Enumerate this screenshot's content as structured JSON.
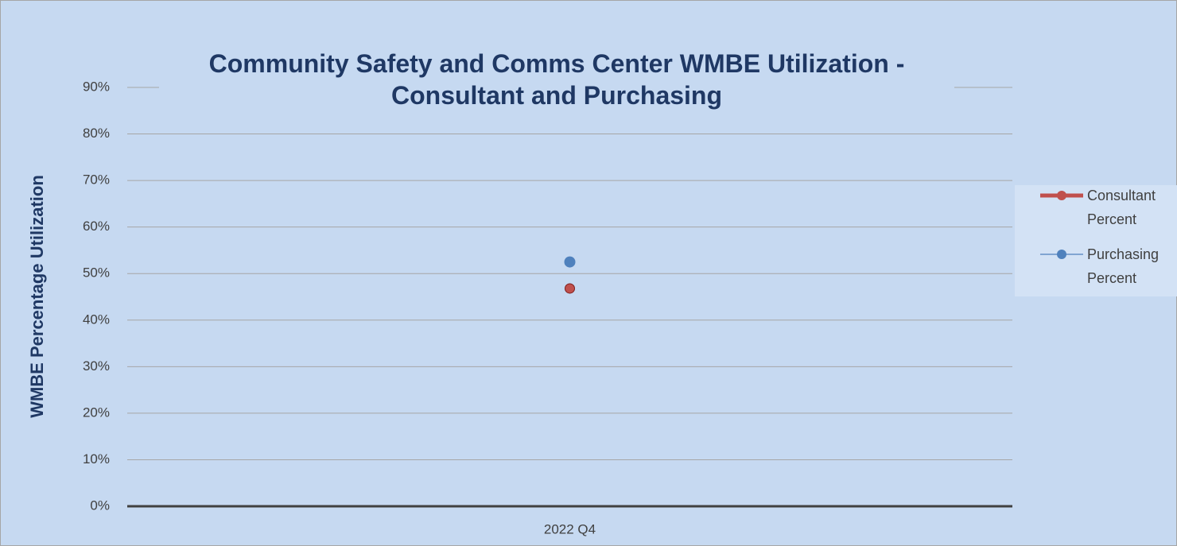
{
  "chart_data": {
    "type": "line",
    "title": "Community Safety and Comms Center WMBE Utilization - Consultant and Purchasing",
    "y_label": "WMBE Percentage Utilization",
    "categories": [
      "2022 Q4"
    ],
    "series": [
      {
        "name": "Consultant Percent",
        "color": "#c0504d",
        "values": [
          46.8
        ]
      },
      {
        "name": "Purchasing Percent",
        "color": "#4f81bd",
        "values": [
          52.5
        ]
      }
    ],
    "ylim": [
      0,
      90
    ],
    "yticks": [
      {
        "value": 0,
        "label": "0%"
      },
      {
        "value": 10,
        "label": "10%"
      },
      {
        "value": 20,
        "label": "20%"
      },
      {
        "value": 30,
        "label": "30%"
      },
      {
        "value": 40,
        "label": "40%"
      },
      {
        "value": 50,
        "label": "50%"
      },
      {
        "value": 60,
        "label": "60%"
      },
      {
        "value": 70,
        "label": "70%"
      },
      {
        "value": 80,
        "label": "80%"
      },
      {
        "value": 90,
        "label": "90%"
      }
    ],
    "grid": true,
    "legend": "right"
  }
}
